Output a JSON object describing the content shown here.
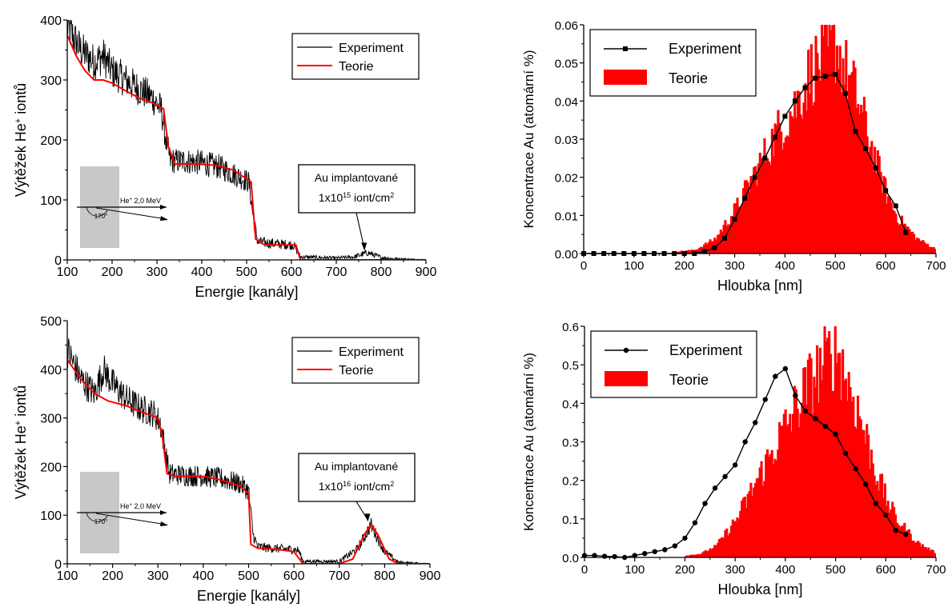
{
  "chart_data": [
    {
      "type": "line",
      "xlabel": "Energie [kanály]",
      "ylabel": "Výtěžek He+ iontů",
      "ylabel_parts": {
        "pre": "Výtěžek He",
        "sup": "+",
        "post": " iontů"
      },
      "xlim": [
        100,
        900
      ],
      "ylim": [
        0,
        400
      ],
      "xticks": [
        100,
        200,
        300,
        400,
        500,
        600,
        700,
        800,
        900
      ],
      "yticks": [
        0,
        100,
        200,
        300,
        400
      ],
      "grid": false,
      "legend_position": "top-right",
      "series": [
        {
          "name": "Experiment",
          "color": "#000000",
          "x": [
            100,
            130,
            160,
            180,
            200,
            230,
            260,
            290,
            310,
            320,
            330,
            360,
            400,
            440,
            480,
            505,
            515,
            525,
            550,
            580,
            605,
            620,
            700,
            740,
            770,
            800,
            830,
            900
          ],
          "y": [
            390,
            350,
            330,
            340,
            315,
            300,
            285,
            270,
            250,
            200,
            165,
            165,
            162,
            155,
            140,
            130,
            70,
            30,
            28,
            26,
            25,
            5,
            3,
            5,
            12,
            4,
            2,
            0
          ]
        },
        {
          "name": "Teorie",
          "color": "#ff0000",
          "x": [
            100,
            120,
            140,
            160,
            180,
            200,
            230,
            260,
            290,
            315,
            325,
            340,
            380,
            430,
            470,
            500,
            510,
            520,
            540,
            580,
            610,
            620,
            900
          ],
          "y": [
            375,
            340,
            315,
            300,
            300,
            295,
            282,
            270,
            262,
            252,
            190,
            160,
            160,
            158,
            150,
            135,
            130,
            35,
            25,
            25,
            25,
            0,
            0
          ]
        }
      ],
      "annotation": {
        "line1": "Au implantované",
        "line2_pre": "1x10",
        "line2_sup": "15",
        "line2_post": " iont/cm",
        "line2_sup2": "2",
        "x": 770,
        "y": 10
      },
      "inset": {
        "beam": "He+ 2,0 MeV",
        "beam_parts": {
          "pre": "He",
          "sup": "+",
          "post": " 2,0 MeV"
        },
        "angle": "170°"
      }
    },
    {
      "type": "bar",
      "xlabel": "Hloubka [nm]",
      "ylabel": "Koncentrace Au (atomární %)",
      "xlim": [
        0,
        700
      ],
      "ylim": [
        0,
        0.06
      ],
      "xticks": [
        0,
        100,
        200,
        300,
        400,
        500,
        600,
        700
      ],
      "yticks": [
        "0.00",
        "0.01",
        "0.02",
        "0.03",
        "0.04",
        "0.05",
        "0.06"
      ],
      "grid": false,
      "legend_position": "top-left",
      "series": [
        {
          "name": "Experiment",
          "type": "line",
          "marker": "square",
          "color": "#000000",
          "x": [
            0,
            20,
            40,
            60,
            80,
            100,
            120,
            140,
            160,
            180,
            200,
            220,
            240,
            260,
            280,
            300,
            320,
            340,
            360,
            380,
            400,
            420,
            440,
            460,
            480,
            500,
            520,
            540,
            560,
            580,
            600,
            620,
            640
          ],
          "y": [
            0,
            0,
            0,
            0,
            0,
            0,
            0,
            0,
            0,
            0,
            0,
            0,
            0.0005,
            0.0015,
            0.004,
            0.009,
            0.0145,
            0.02,
            0.025,
            0.0305,
            0.036,
            0.04,
            0.0435,
            0.046,
            0.0465,
            0.047,
            0.042,
            0.032,
            0.0275,
            0.0225,
            0.0165,
            0.0125,
            0.0055
          ]
        },
        {
          "name": "Teorie",
          "type": "area",
          "color": "#ff0000",
          "x": [
            180,
            220,
            260,
            300,
            340,
            380,
            420,
            450,
            480,
            500,
            520,
            540,
            560,
            580,
            600,
            620,
            660,
            700
          ],
          "y": [
            0.0005,
            0.001,
            0.004,
            0.012,
            0.022,
            0.032,
            0.04,
            0.049,
            0.053,
            0.056,
            0.048,
            0.042,
            0.033,
            0.024,
            0.016,
            0.01,
            0.004,
            0.001
          ]
        }
      ]
    },
    {
      "type": "line",
      "xlabel": "Energie [kanály]",
      "ylabel": "Výtěžek He+ iontů",
      "ylabel_parts": {
        "pre": "Výtěžek He",
        "sup": "+",
        "post": " iontů"
      },
      "xlim": [
        100,
        900
      ],
      "ylim": [
        0,
        500
      ],
      "xticks": [
        100,
        200,
        300,
        400,
        500,
        600,
        700,
        800,
        900
      ],
      "yticks": [
        0,
        100,
        200,
        300,
        400,
        500
      ],
      "grid": false,
      "legend_position": "top-right",
      "series": [
        {
          "name": "Experiment",
          "color": "#000000",
          "x": [
            100,
            130,
            160,
            180,
            200,
            230,
            260,
            290,
            305,
            315,
            325,
            360,
            400,
            440,
            480,
            500,
            510,
            520,
            550,
            590,
            610,
            620,
            700,
            740,
            770,
            800,
            830,
            900
          ],
          "y": [
            440,
            380,
            350,
            400,
            370,
            340,
            320,
            310,
            290,
            240,
            185,
            182,
            180,
            175,
            165,
            150,
            60,
            35,
            32,
            30,
            28,
            5,
            5,
            30,
            80,
            25,
            3,
            0
          ]
        },
        {
          "name": "Teorie",
          "color": "#ff0000",
          "x": [
            100,
            130,
            160,
            190,
            230,
            270,
            300,
            310,
            320,
            340,
            400,
            440,
            480,
            500,
            505,
            520,
            560,
            600,
            620,
            700,
            730,
            755,
            770,
            785,
            810,
            830,
            900
          ],
          "y": [
            420,
            380,
            350,
            335,
            325,
            310,
            300,
            260,
            185,
            180,
            180,
            172,
            160,
            145,
            40,
            32,
            30,
            25,
            0,
            0,
            10,
            60,
            80,
            60,
            10,
            0,
            0
          ]
        }
      ],
      "annotation": {
        "line1": "Au implantované",
        "line2_pre": "1x10",
        "line2_sup": "16",
        "line2_post": " iont/cm",
        "line2_sup2": "2",
        "x": 770,
        "y": 80
      },
      "inset": {
        "beam": "He+ 2,0 MeV",
        "beam_parts": {
          "pre": "He",
          "sup": "+",
          "post": " 2,0 MeV"
        },
        "angle": "170°"
      }
    },
    {
      "type": "bar",
      "xlabel": "Hloubka [nm]",
      "ylabel": "Koncentrace Au (atomární %)",
      "xlim": [
        0,
        700
      ],
      "ylim": [
        0,
        0.6
      ],
      "xticks": [
        0,
        100,
        200,
        300,
        400,
        500,
        600,
        700
      ],
      "yticks": [
        "0.0",
        "0.1",
        "0.2",
        "0.3",
        "0.4",
        "0.5",
        "0.6"
      ],
      "grid": false,
      "legend_position": "top-left",
      "series": [
        {
          "name": "Experiment",
          "type": "line",
          "marker": "circle",
          "color": "#000000",
          "x": [
            0,
            20,
            40,
            60,
            80,
            100,
            120,
            140,
            160,
            180,
            200,
            220,
            240,
            260,
            280,
            300,
            320,
            340,
            360,
            380,
            400,
            420,
            440,
            460,
            480,
            500,
            520,
            540,
            560,
            580,
            600,
            620,
            640
          ],
          "y": [
            0.005,
            0.005,
            0.003,
            0.002,
            0,
            0.005,
            0.01,
            0.015,
            0.02,
            0.03,
            0.05,
            0.09,
            0.14,
            0.18,
            0.21,
            0.24,
            0.3,
            0.35,
            0.41,
            0.47,
            0.49,
            0.42,
            0.38,
            0.36,
            0.34,
            0.32,
            0.27,
            0.23,
            0.19,
            0.14,
            0.11,
            0.07,
            0.06
          ]
        },
        {
          "name": "Teorie",
          "type": "area",
          "color": "#ff0000",
          "x": [
            200,
            230,
            260,
            300,
            340,
            380,
            420,
            450,
            480,
            500,
            520,
            540,
            560,
            580,
            600,
            620,
            660,
            700
          ],
          "y": [
            0.005,
            0.01,
            0.03,
            0.1,
            0.2,
            0.3,
            0.4,
            0.47,
            0.52,
            0.56,
            0.47,
            0.4,
            0.31,
            0.22,
            0.15,
            0.1,
            0.04,
            0.01
          ]
        }
      ]
    }
  ]
}
